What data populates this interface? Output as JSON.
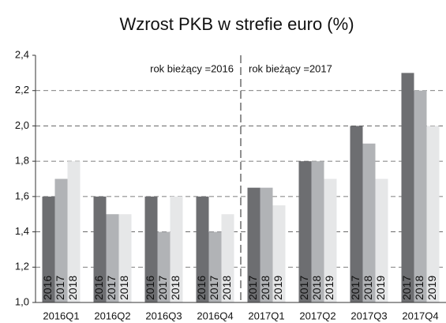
{
  "chart_data": {
    "type": "bar",
    "title": "Wzrost PKB w strefie euro (%)",
    "categories": [
      "2016Q1",
      "2016Q2",
      "2016Q3",
      "2016Q4",
      "2017Q1",
      "2017Q2",
      "2017Q3",
      "2017Q4"
    ],
    "series": [
      {
        "color": "#6d6e71",
        "values": [
          1.6,
          1.6,
          1.6,
          1.6,
          1.65,
          1.8,
          2.0,
          2.3
        ]
      },
      {
        "color": "#b1b3b6",
        "values": [
          1.7,
          1.5,
          1.4,
          1.4,
          1.65,
          1.8,
          1.9,
          2.2
        ]
      },
      {
        "color": "#e6e7e8",
        "values": [
          1.8,
          1.5,
          1.6,
          1.5,
          1.55,
          1.7,
          1.7,
          2.0
        ]
      }
    ],
    "bar_labels": [
      [
        "2016",
        "2017",
        "2018"
      ],
      [
        "2016",
        "2017",
        "2018"
      ],
      [
        "2016",
        "2017",
        "2018"
      ],
      [
        "2016",
        "2017",
        "2018"
      ],
      [
        "2017",
        "2018",
        "2019"
      ],
      [
        "2017",
        "2018",
        "2019"
      ],
      [
        "2017",
        "2018",
        "2019"
      ],
      [
        "2017",
        "2018",
        "2019"
      ]
    ],
    "annotations": [
      "rok bieżący =2016",
      "rok bieżący =2017"
    ],
    "ylim": [
      1.0,
      2.4
    ],
    "yticks": [
      {
        "value": 1.0,
        "label": "1,0"
      },
      {
        "value": 1.2,
        "label": "1,2"
      },
      {
        "value": 1.4,
        "label": "1,4"
      },
      {
        "value": 1.6,
        "label": "1,6"
      },
      {
        "value": 1.8,
        "label": "1,8"
      },
      {
        "value": 2.0,
        "label": "2,0"
      },
      {
        "value": 2.2,
        "label": "2,2"
      },
      {
        "value": 2.4,
        "label": "2,4"
      }
    ],
    "grid": true
  }
}
